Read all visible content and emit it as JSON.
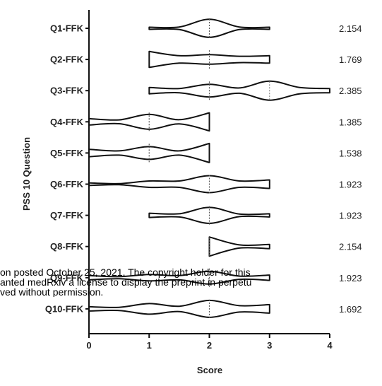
{
  "chart_data": {
    "type": "violin",
    "orientation": "horizontal",
    "categories": [
      "Q1-FFK",
      "Q2-FFK",
      "Q3-FFK",
      "Q4-FFK",
      "Q5-FFK",
      "Q6-FFK",
      "Q7-FFK",
      "Q8-FFK",
      "Q9-FFK",
      "Q10-FFK"
    ],
    "means": [
      2.154,
      1.769,
      2.385,
      1.385,
      1.538,
      1.923,
      1.923,
      2.154,
      1.923,
      1.692
    ],
    "mean_labels": [
      "2.154",
      "1.769",
      "2.385",
      "1.385",
      "1.538",
      "1.923",
      "1.923",
      "2.154",
      "1.923",
      "1.692"
    ],
    "ranges": [
      [
        1,
        3
      ],
      [
        1,
        3
      ],
      [
        1,
        4
      ],
      [
        0,
        2
      ],
      [
        0,
        2
      ],
      [
        0,
        3
      ],
      [
        1,
        3
      ],
      [
        2,
        3
      ],
      [
        0,
        3
      ],
      [
        0,
        3
      ]
    ],
    "medians": [
      2,
      2,
      2,
      1,
      1,
      2,
      2,
      2,
      2,
      2
    ],
    "quartiles": [
      [],
      [],
      [
        3
      ],
      [],
      [],
      [],
      [],
      [],
      [],
      []
    ],
    "densities": [
      [
        [
          1,
          0.1
        ],
        [
          1.5,
          0.12
        ],
        [
          2,
          0.85
        ],
        [
          2.5,
          0.12
        ],
        [
          3,
          0.1
        ]
      ],
      [
        [
          1,
          0.75
        ],
        [
          1.5,
          0.35
        ],
        [
          2,
          0.45
        ],
        [
          2.5,
          0.3
        ],
        [
          3,
          0.35
        ]
      ],
      [
        [
          1,
          0.3
        ],
        [
          1.5,
          0.2
        ],
        [
          2,
          0.6
        ],
        [
          2.5,
          0.25
        ],
        [
          3,
          0.9
        ],
        [
          3.5,
          0.3
        ],
        [
          4,
          0.2
        ]
      ],
      [
        [
          0,
          0.3
        ],
        [
          0.5,
          0.18
        ],
        [
          1,
          0.7
        ],
        [
          1.5,
          0.2
        ],
        [
          2,
          0.85
        ]
      ],
      [
        [
          0,
          0.35
        ],
        [
          0.5,
          0.2
        ],
        [
          1,
          0.6
        ],
        [
          1.5,
          0.2
        ],
        [
          2,
          0.9
        ]
      ],
      [
        [
          0,
          0.12
        ],
        [
          0.5,
          0.05
        ],
        [
          1,
          0.3
        ],
        [
          1.5,
          0.3
        ],
        [
          2,
          0.8
        ],
        [
          2.5,
          0.3
        ],
        [
          3,
          0.4
        ]
      ],
      [
        [
          1,
          0.2
        ],
        [
          1.5,
          0.15
        ],
        [
          2,
          0.75
        ],
        [
          2.5,
          0.12
        ],
        [
          3,
          0.15
        ]
      ],
      [
        [
          2,
          0.9
        ],
        [
          2.5,
          0.15
        ],
        [
          3,
          0.2
        ]
      ],
      [
        [
          0,
          0.2
        ],
        [
          0.5,
          0.1
        ],
        [
          1,
          0.3
        ],
        [
          1.5,
          0.2
        ],
        [
          2,
          0.6
        ],
        [
          2.5,
          0.15
        ],
        [
          3,
          0.25
        ]
      ],
      [
        [
          0,
          0.2
        ],
        [
          0.5,
          0.15
        ],
        [
          1,
          0.5
        ],
        [
          1.5,
          0.25
        ],
        [
          2,
          0.8
        ],
        [
          2.5,
          0.3
        ],
        [
          3,
          0.4
        ]
      ]
    ],
    "xlabel": "Score",
    "ylabel": "PSS 10 Question",
    "xlim": [
      0,
      4
    ],
    "xticks": [
      0,
      1,
      2,
      3,
      4
    ],
    "grid": false
  },
  "watermark": {
    "line1": "on posted October 25, 2021. The copyright holder for this",
    "line2": "anted medRxiv a license to display the preprint in perpetu",
    "line3": "ved without permission."
  }
}
